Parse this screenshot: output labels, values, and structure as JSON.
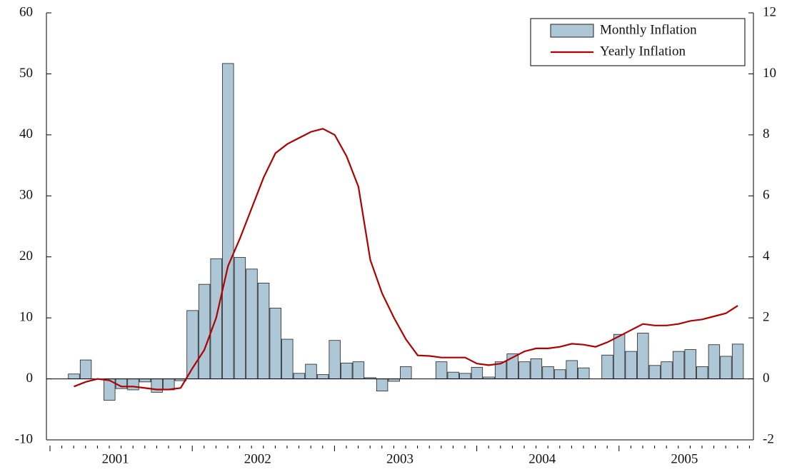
{
  "chart_data": {
    "type": "bar",
    "categories": [
      null,
      null,
      null,
      null,
      null,
      null,
      null,
      null,
      null,
      null,
      null,
      null,
      null,
      null,
      null,
      null,
      null,
      null,
      null,
      null,
      null,
      null,
      null,
      null,
      null,
      null,
      null,
      null,
      null,
      null,
      null,
      null,
      null,
      null,
      null,
      null,
      null,
      null,
      null,
      null,
      null,
      null,
      null,
      null,
      null,
      null,
      null,
      null,
      null,
      null,
      null,
      null,
      null,
      null,
      null,
      null,
      null,
      null,
      null,
      null
    ],
    "xticks": [
      {
        "value": 5.5,
        "label": "2001"
      },
      {
        "value": 17.5,
        "label": "2002"
      },
      {
        "value": 29.5,
        "label": "2003"
      },
      {
        "value": 41.5,
        "label": "2004"
      },
      {
        "value": 53.5,
        "label": "2005"
      }
    ],
    "series": [
      {
        "name": "Monthly Inflation",
        "type": "bar",
        "color": "#adc7d6",
        "values": [
          null,
          null,
          0.8,
          3.1,
          null,
          -3.5,
          -1.6,
          -1.8,
          -0.5,
          -2.2,
          -1.8,
          -0.3,
          11.2,
          15.5,
          19.7,
          51.7,
          19.9,
          18.0,
          15.7,
          11.6,
          6.5,
          0.9,
          2.4,
          0.7,
          6.3,
          2.6,
          2.8,
          0.2,
          -2.0,
          -0.4,
          2.0,
          null,
          null,
          2.8,
          1.1,
          0.9,
          1.9,
          0.3,
          2.8,
          4.1,
          2.8,
          3.3,
          2.0,
          1.5,
          3.0,
          1.8,
          null,
          3.9,
          7.3,
          4.5,
          7.5,
          2.2,
          2.8,
          4.5,
          4.8,
          2.0,
          5.6,
          3.7,
          5.7,
          null
        ]
      },
      {
        "name": "Yearly Inflation",
        "type": "line",
        "axis": "y2",
        "color": "#b00000",
        "values": [
          null,
          null,
          -0.25,
          -0.1,
          0.0,
          -0.05,
          -0.25,
          -0.25,
          -0.3,
          -0.35,
          -0.35,
          -0.3,
          0.35,
          0.95,
          2.0,
          3.7,
          4.6,
          5.6,
          6.6,
          7.4,
          7.7,
          7.9,
          8.1,
          8.2,
          8.0,
          7.3,
          6.3,
          3.9,
          2.8,
          2.0,
          1.3,
          0.77,
          0.75,
          0.7,
          0.7,
          0.7,
          0.5,
          0.45,
          0.5,
          0.7,
          0.9,
          1.0,
          1.0,
          1.05,
          1.15,
          1.12,
          1.05,
          1.2,
          1.4,
          1.6,
          1.8,
          1.75,
          1.75,
          1.8,
          1.9,
          1.95,
          2.05,
          2.15,
          2.4,
          null
        ]
      }
    ],
    "ylim": [
      -10,
      60
    ],
    "yticks": [
      -10,
      0,
      10,
      20,
      30,
      40,
      50,
      60
    ],
    "y2lim": [
      -2,
      12
    ],
    "y2ticks": [
      -2,
      0,
      2,
      4,
      6,
      8,
      10,
      12
    ],
    "legend": "upper right"
  }
}
